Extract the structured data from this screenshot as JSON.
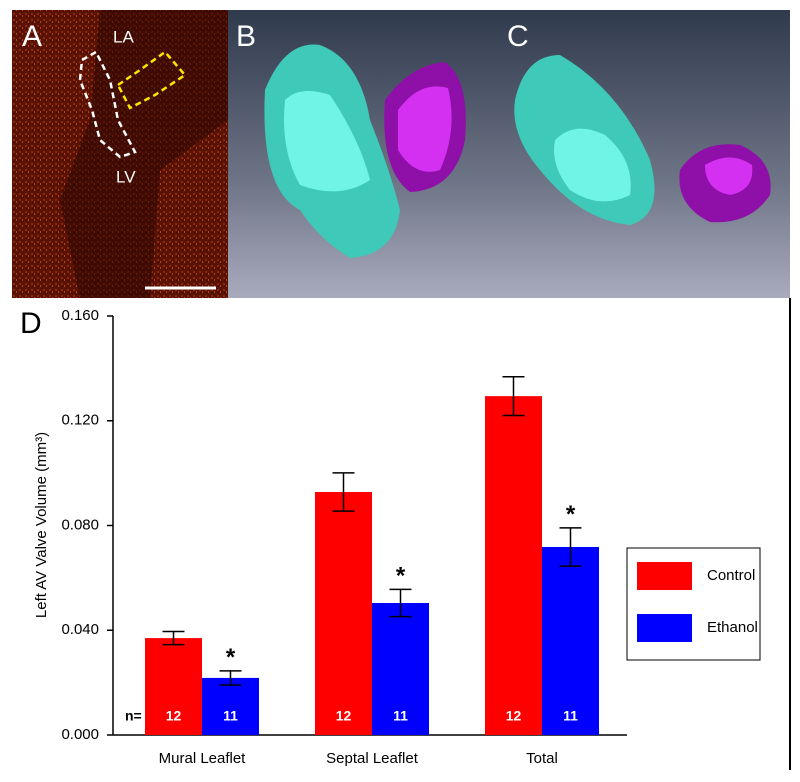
{
  "panels": [
    {
      "label": "A",
      "annotations": [
        "LA",
        "LV"
      ]
    },
    {
      "label": "B"
    },
    {
      "label": "C"
    },
    {
      "label": "D"
    }
  ],
  "chart_data": {
    "type": "bar",
    "y_label": "Left AV Valve Volume (mm³)",
    "categories": [
      "Mural Leaflet",
      "Septal Leaflet",
      "Total"
    ],
    "series": [
      {
        "name": "Control",
        "color": "#ff0000",
        "values": [
          0.037,
          0.0928,
          0.1294
        ],
        "errors": [
          0.0025,
          0.0073,
          0.0074
        ],
        "n": [
          12,
          12,
          12
        ]
      },
      {
        "name": "Ethanol",
        "color": "#0000ff",
        "values": [
          0.0218,
          0.0504,
          0.0718
        ],
        "errors": [
          0.0027,
          0.0052,
          0.0073
        ],
        "n": [
          11,
          11,
          11
        ],
        "significance": [
          "*",
          "*",
          "*"
        ]
      }
    ],
    "n_label": "n=",
    "ylim": [
      0,
      0.16
    ],
    "yticks": [
      {
        "value": 0,
        "label": "0.000"
      },
      {
        "value": 0.04,
        "label": "0.040"
      },
      {
        "value": 0.08,
        "label": "0.080"
      },
      {
        "value": 0.12,
        "label": "0.120"
      },
      {
        "value": 0.16,
        "label": "0.160"
      }
    ],
    "legend_position": "right"
  }
}
